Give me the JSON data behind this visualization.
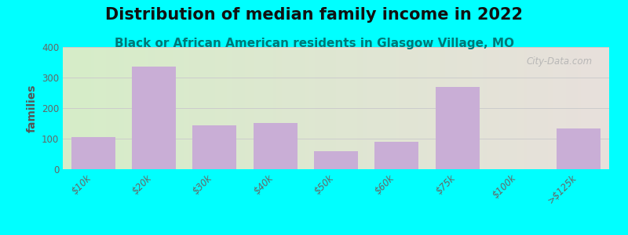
{
  "title": "Distribution of median family income in 2022",
  "subtitle": "Black or African American residents in Glasgow Village, MO",
  "ylabel": "families",
  "categories": [
    "$10k",
    "$20k",
    "$30k",
    "$40k",
    "$50k",
    "$60k",
    "$75k",
    "$100k",
    ">$125k"
  ],
  "values": [
    105,
    335,
    143,
    152,
    60,
    90,
    268,
    0,
    133
  ],
  "bar_color": "#c9aed6",
  "background_outer": "#00ffff",
  "background_plot_topleft": "#d6edc8",
  "background_plot_topright": "#e8e0dc",
  "background_plot_bottomleft": "#d6edc8",
  "background_plot_bottomright": "#e8e0dc",
  "ylim": [
    0,
    400
  ],
  "yticks": [
    0,
    100,
    200,
    300,
    400
  ],
  "title_fontsize": 15,
  "subtitle_fontsize": 11,
  "ylabel_fontsize": 10,
  "tick_label_fontsize": 8.5,
  "watermark": "City-Data.com",
  "grid_color": "#cccccc"
}
